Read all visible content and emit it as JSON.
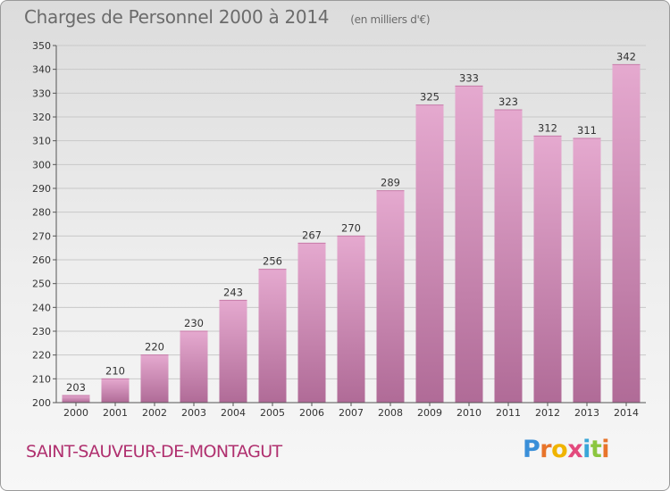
{
  "header": {
    "title": "Charges de Personnel 2000 à 2014",
    "subtitle": "(en milliers d'€)"
  },
  "footer": {
    "commune": "SAINT-SAUVEUR-DE-MONTAGUT",
    "logo_letters": [
      "P",
      "r",
      "o",
      "x",
      "i",
      "t",
      "i"
    ],
    "logo_colors": [
      "#3a8fd8",
      "#e8742a",
      "#f0b400",
      "#e34a7d",
      "#3aa6d8",
      "#8cc63f",
      "#e8742a"
    ]
  },
  "colors": {
    "bar_top": "#e5a9cf",
    "bar_bottom": "#b06b97",
    "grid": "#c8c8c8",
    "axis": "#555555"
  },
  "chart_data": {
    "type": "bar",
    "title": "Charges de Personnel 2000 à 2014",
    "subtitle": "(en milliers d'€)",
    "categories": [
      "2000",
      "2001",
      "2002",
      "2003",
      "2004",
      "2005",
      "2006",
      "2007",
      "2008",
      "2009",
      "2010",
      "2011",
      "2012",
      "2013",
      "2014"
    ],
    "values": [
      203,
      210,
      220,
      230,
      243,
      256,
      267,
      270,
      289,
      325,
      333,
      323,
      312,
      311,
      342
    ],
    "ylim": [
      200,
      350
    ],
    "yticks": [
      200,
      210,
      220,
      230,
      240,
      250,
      260,
      270,
      280,
      290,
      300,
      310,
      320,
      330,
      340,
      350
    ],
    "grid": true,
    "data_labels": true
  }
}
